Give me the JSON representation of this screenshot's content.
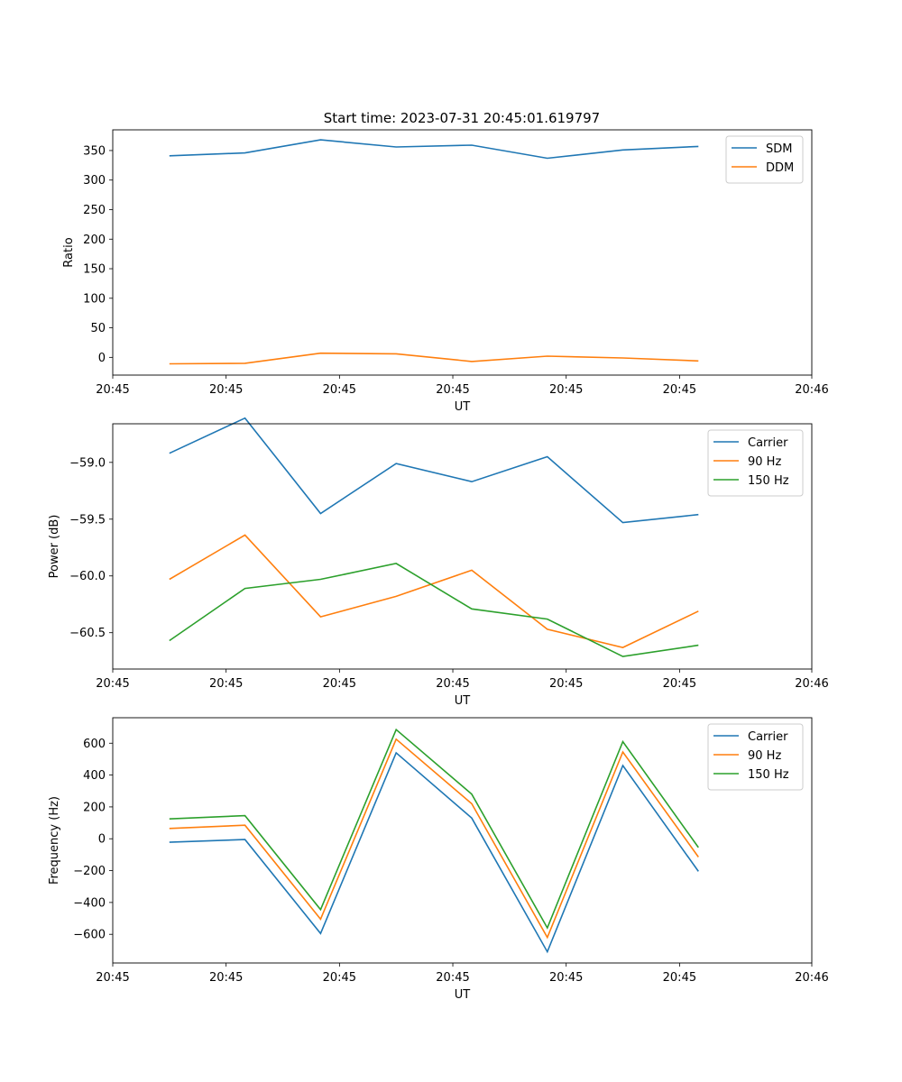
{
  "figure_title": "Start time: 2023-07-31 20:45:01.619797",
  "colors": {
    "c0": "#1f77b4",
    "c1": "#ff7f0e",
    "c2": "#2ca02c"
  },
  "chart_data": [
    {
      "type": "line",
      "title": "Start time: 2023-07-31 20:45:01.619797",
      "xlabel": "UT",
      "ylabel": "Ratio",
      "x": [
        0,
        1,
        2,
        3,
        4,
        5,
        6,
        7
      ],
      "xlim": [
        -0.75,
        8.5
      ],
      "xticks": [
        -0.75,
        0.75,
        2.25,
        3.75,
        5.25,
        6.75,
        8.5
      ],
      "xtick_labels": [
        "20:45",
        "20:45",
        "20:45",
        "20:45",
        "20:45",
        "20:45",
        "20:46"
      ],
      "ylim": [
        -30,
        385
      ],
      "yticks": [
        0,
        50,
        100,
        150,
        200,
        250,
        300,
        350
      ],
      "ytick_labels": [
        "0",
        "50",
        "100",
        "150",
        "200",
        "250",
        "300",
        "350"
      ],
      "legend": "top-right",
      "series": [
        {
          "name": "SDM",
          "color": "#1f77b4",
          "values": [
            341,
            346,
            368,
            356,
            359,
            337,
            351,
            357
          ]
        },
        {
          "name": "DDM",
          "color": "#ff7f0e",
          "values": [
            -11,
            -10,
            7,
            6,
            -7,
            2,
            -1,
            -6
          ]
        }
      ]
    },
    {
      "type": "line",
      "title": "",
      "xlabel": "UT",
      "ylabel": "Power (dB)",
      "x": [
        0,
        1,
        2,
        3,
        4,
        5,
        6,
        7
      ],
      "xlim": [
        -0.75,
        8.5
      ],
      "xticks": [
        -0.75,
        0.75,
        2.25,
        3.75,
        5.25,
        6.75,
        8.5
      ],
      "xtick_labels": [
        "20:45",
        "20:45",
        "20:45",
        "20:45",
        "20:45",
        "20:45",
        "20:46"
      ],
      "ylim": [
        -60.82,
        -58.66
      ],
      "yticks": [
        -59.0,
        -59.5,
        -60.0,
        -60.5
      ],
      "ytick_labels": [
        "−59.0",
        "−59.5",
        "−60.0",
        "−60.5"
      ],
      "legend": "top-right",
      "series": [
        {
          "name": "Carrier",
          "color": "#1f77b4",
          "values": [
            -58.92,
            -58.61,
            -59.45,
            -59.01,
            -59.17,
            -58.95,
            -59.53,
            -59.46
          ]
        },
        {
          "name": "90 Hz",
          "color": "#ff7f0e",
          "values": [
            -60.03,
            -59.64,
            -60.36,
            -60.18,
            -59.95,
            -60.47,
            -60.63,
            -60.31
          ]
        },
        {
          "name": "150 Hz",
          "color": "#2ca02c",
          "values": [
            -60.57,
            -60.11,
            -60.03,
            -59.89,
            -60.29,
            -60.38,
            -60.71,
            -60.61
          ]
        }
      ]
    },
    {
      "type": "line",
      "title": "",
      "xlabel": "UT",
      "ylabel": "Frequency (Hz)",
      "x": [
        0,
        1,
        2,
        3,
        4,
        5,
        6,
        7
      ],
      "xlim": [
        -0.75,
        8.5
      ],
      "xticks": [
        -0.75,
        0.75,
        2.25,
        3.75,
        5.25,
        6.75,
        8.5
      ],
      "xtick_labels": [
        "20:45",
        "20:45",
        "20:45",
        "20:45",
        "20:45",
        "20:45",
        "20:46"
      ],
      "ylim": [
        -780,
        760
      ],
      "yticks": [
        600,
        400,
        200,
        0,
        -200,
        -400,
        -600
      ],
      "ytick_labels": [
        "600",
        "400",
        "200",
        "0",
        "−200",
        "−400",
        "−600"
      ],
      "legend": "top-right",
      "series": [
        {
          "name": "Carrier",
          "color": "#1f77b4",
          "values": [
            -22,
            -5,
            -595,
            540,
            130,
            -710,
            460,
            -205
          ]
        },
        {
          "name": "90 Hz",
          "color": "#ff7f0e",
          "values": [
            65,
            85,
            -505,
            625,
            220,
            -620,
            545,
            -115
          ]
        },
        {
          "name": "150 Hz",
          "color": "#2ca02c",
          "values": [
            125,
            145,
            -445,
            685,
            280,
            -560,
            610,
            -55
          ]
        }
      ]
    }
  ]
}
